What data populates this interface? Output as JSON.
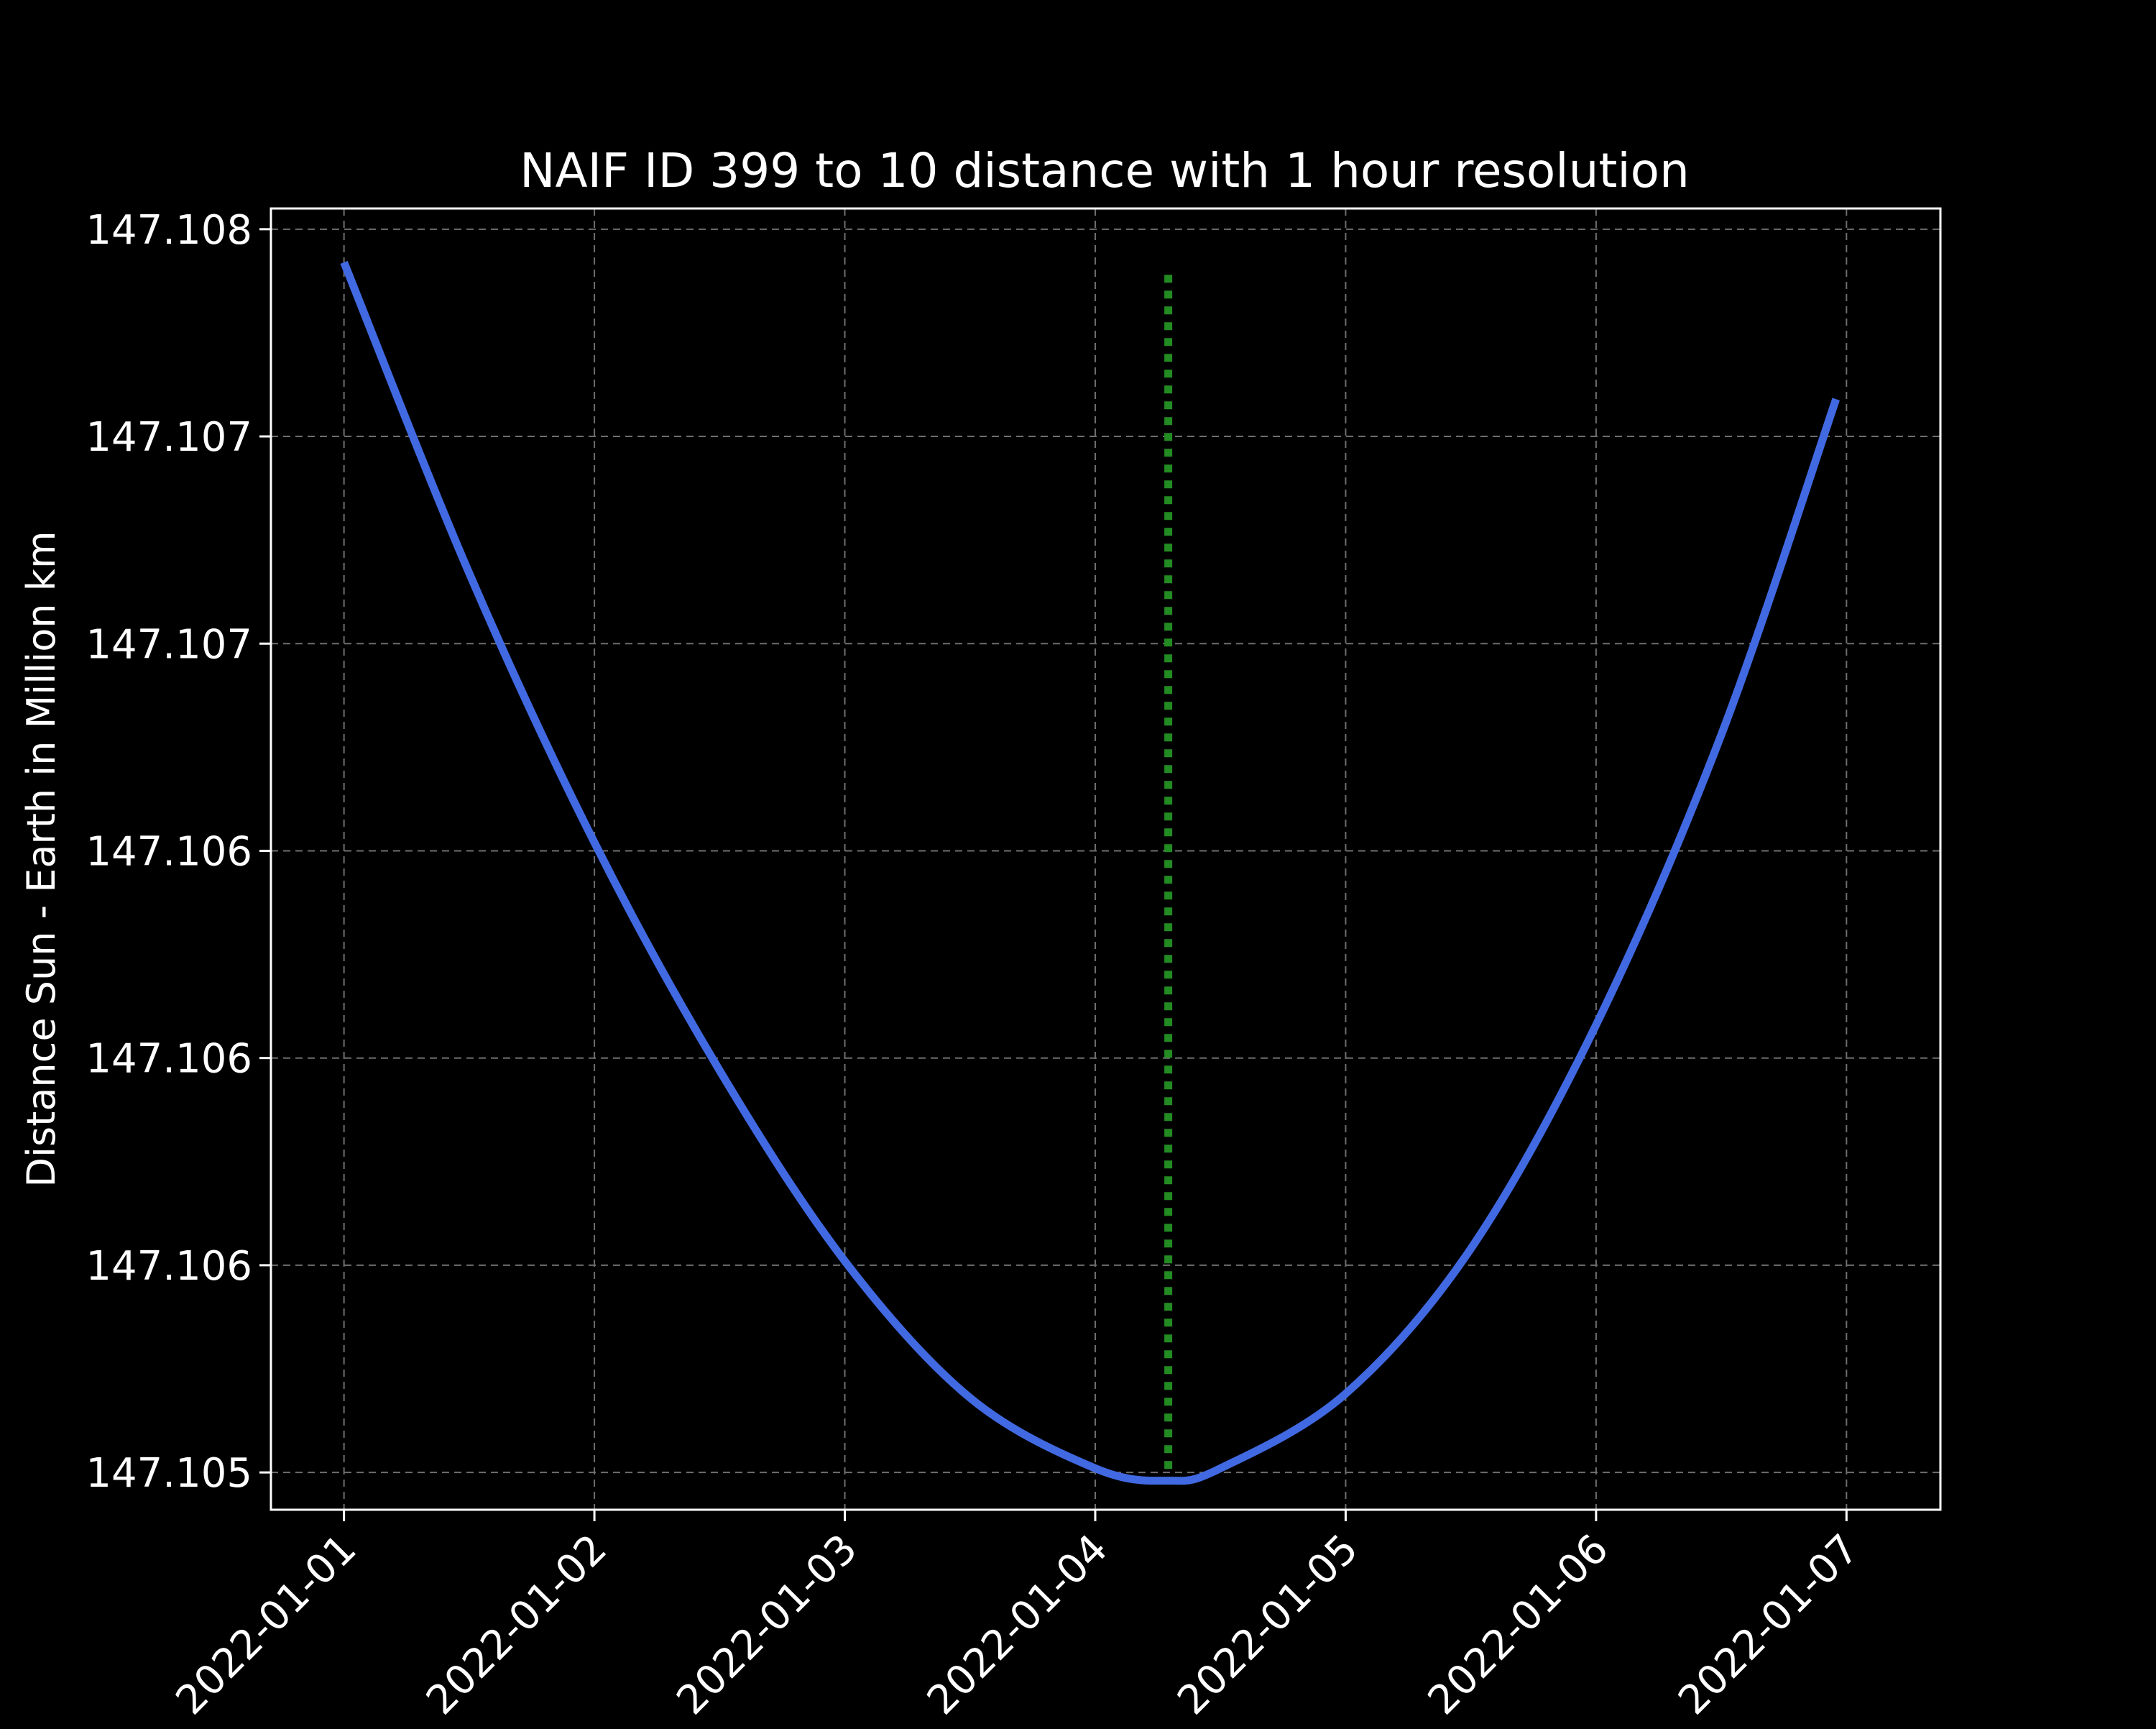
{
  "chart_data": {
    "type": "line",
    "title": "NAIF ID 399 to 10 distance with 1 hour resolution",
    "xlabel": "",
    "ylabel": "Distance Sun - Earth in Million km",
    "x_tick_labels": [
      "2022-01-01",
      "2022-01-02",
      "2022-01-03",
      "2022-01-04",
      "2022-01-05",
      "2022-01-06",
      "2022-01-07"
    ],
    "y_tick_labels": [
      "147.105",
      "147.106",
      "147.106",
      "147.106",
      "147.107",
      "147.107",
      "147.108"
    ],
    "y_tick_values": [
      147.105,
      147.1055,
      147.106,
      147.1065,
      147.107,
      147.1075,
      147.108
    ],
    "xlim": [
      "2021-12-31T17:00",
      "2022-01-07T09:00"
    ],
    "ylim": [
      147.10491,
      147.10805
    ],
    "grid": true,
    "background": "#000000",
    "series": [
      {
        "color": "#4169e1",
        "style": "solid",
        "x": [
          "2022-01-01T00:00",
          "2022-01-01T12:00",
          "2022-01-02T00:00",
          "2022-01-02T12:00",
          "2022-01-03T00:00",
          "2022-01-03T12:00",
          "2022-01-04T00:00",
          "2022-01-04T07:00",
          "2022-01-04T12:00",
          "2022-01-05T00:00",
          "2022-01-05T12:00",
          "2022-01-06T00:00",
          "2022-01-06T12:00",
          "2022-01-06T23:00"
        ],
        "y": [
          147.10792,
          147.10717,
          147.10652,
          147.10597,
          147.10551,
          147.10518,
          147.10501,
          147.10498,
          147.10501,
          147.10519,
          147.10554,
          147.10608,
          147.10678,
          147.10759
        ]
      }
    ],
    "annotations": [
      {
        "type": "vertical-line",
        "color": "#228b22",
        "style": "dotted",
        "x": "2022-01-04T07:00",
        "y_from": 147.10498,
        "y_to": 147.10789
      }
    ]
  }
}
